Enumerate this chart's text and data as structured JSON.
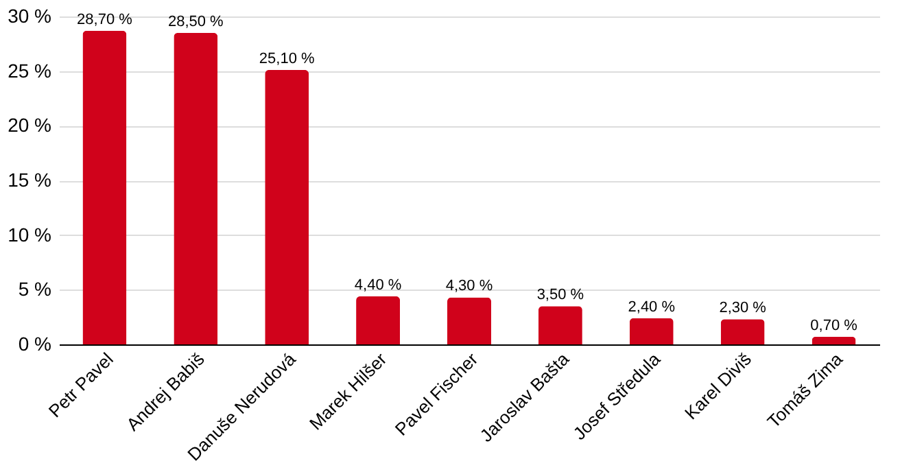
{
  "chart_data": {
    "type": "bar",
    "categories": [
      "Petr Pavel",
      "Andrej Babiš",
      "Danuše Nerudová",
      "Marek Hilšer",
      "Pavel Fischer",
      "Jaroslav Bašta",
      "Josef Středula",
      "Karel Diviš",
      "Tomáš Zima"
    ],
    "values": [
      28.7,
      28.5,
      25.1,
      4.4,
      4.3,
      3.5,
      2.4,
      2.3,
      0.7
    ],
    "value_labels": [
      "28,70 %",
      "28,50 %",
      "25,10 %",
      "4,40 %",
      "4,30 %",
      "3,50 %",
      "2,40 %",
      "2,30 %",
      "0,70 %"
    ],
    "color": "#d0021b",
    "ylim": [
      0,
      30
    ],
    "yticks": [
      {
        "value": 0,
        "label": "0 %"
      },
      {
        "value": 5,
        "label": "5 %"
      },
      {
        "value": 10,
        "label": "10 %"
      },
      {
        "value": 15,
        "label": "15 %"
      },
      {
        "value": 20,
        "label": "20 %"
      },
      {
        "value": 25,
        "label": "25 %"
      },
      {
        "value": 30,
        "label": "30 %"
      }
    ],
    "grid": "y"
  }
}
